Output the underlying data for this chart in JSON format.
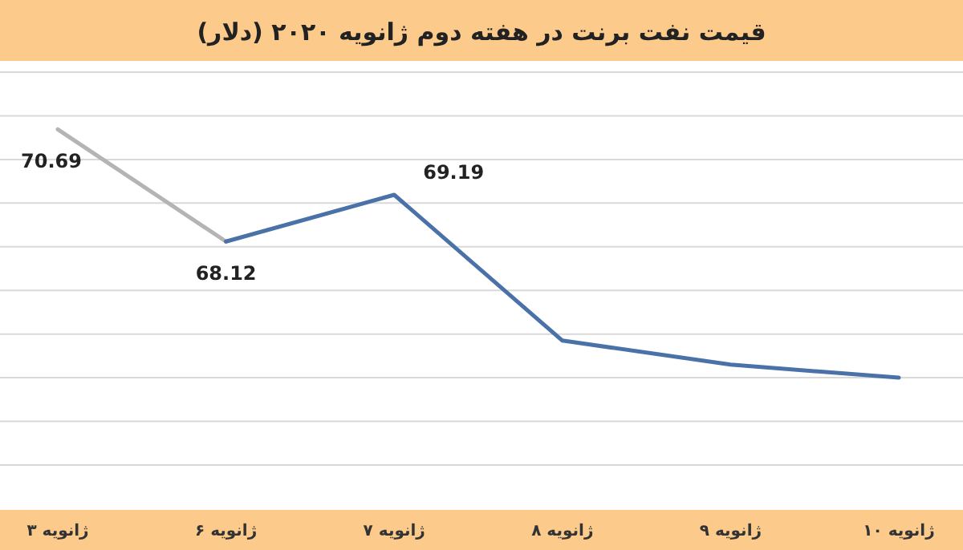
{
  "chart_data": {
    "type": "line",
    "title": "قیمت نفت برنت در هفته دوم ژانویه ۲۰۲۰ (دلار)",
    "categories": [
      "۳ ژانویه",
      "۶ ژانویه",
      "۷ ژانویه",
      "۸ ژانویه",
      "۹ ژانویه",
      "۱۰ ژانویه"
    ],
    "series": [
      {
        "color": "#b4b4b4",
        "values": [
          70.69,
          68.12,
          null,
          null,
          null,
          null
        ],
        "value_labels": [
          "70.69",
          null,
          null,
          null,
          null,
          null
        ]
      },
      {
        "color": "#4a72a8",
        "values": [
          null,
          68.12,
          69.19,
          65.85,
          65.3,
          65.0
        ],
        "value_labels": [
          null,
          "68.12",
          "69.19",
          null,
          null,
          null
        ]
      }
    ],
    "ylim": [
      63,
      72
    ],
    "yticks": [
      {
        "value": 63,
        "label": null
      },
      {
        "value": 64,
        "label": null
      },
      {
        "value": 65,
        "label": null
      },
      {
        "value": 66,
        "label": null
      },
      {
        "value": 67,
        "label": null
      },
      {
        "value": 68,
        "label": null
      },
      {
        "value": 69,
        "label": null
      },
      {
        "value": 70,
        "label": null
      },
      {
        "value": 71,
        "label": null
      },
      {
        "value": 72,
        "label": null
      }
    ],
    "grid": "y",
    "tick_labels": "x",
    "marker": "none",
    "line_style": "solid"
  }
}
